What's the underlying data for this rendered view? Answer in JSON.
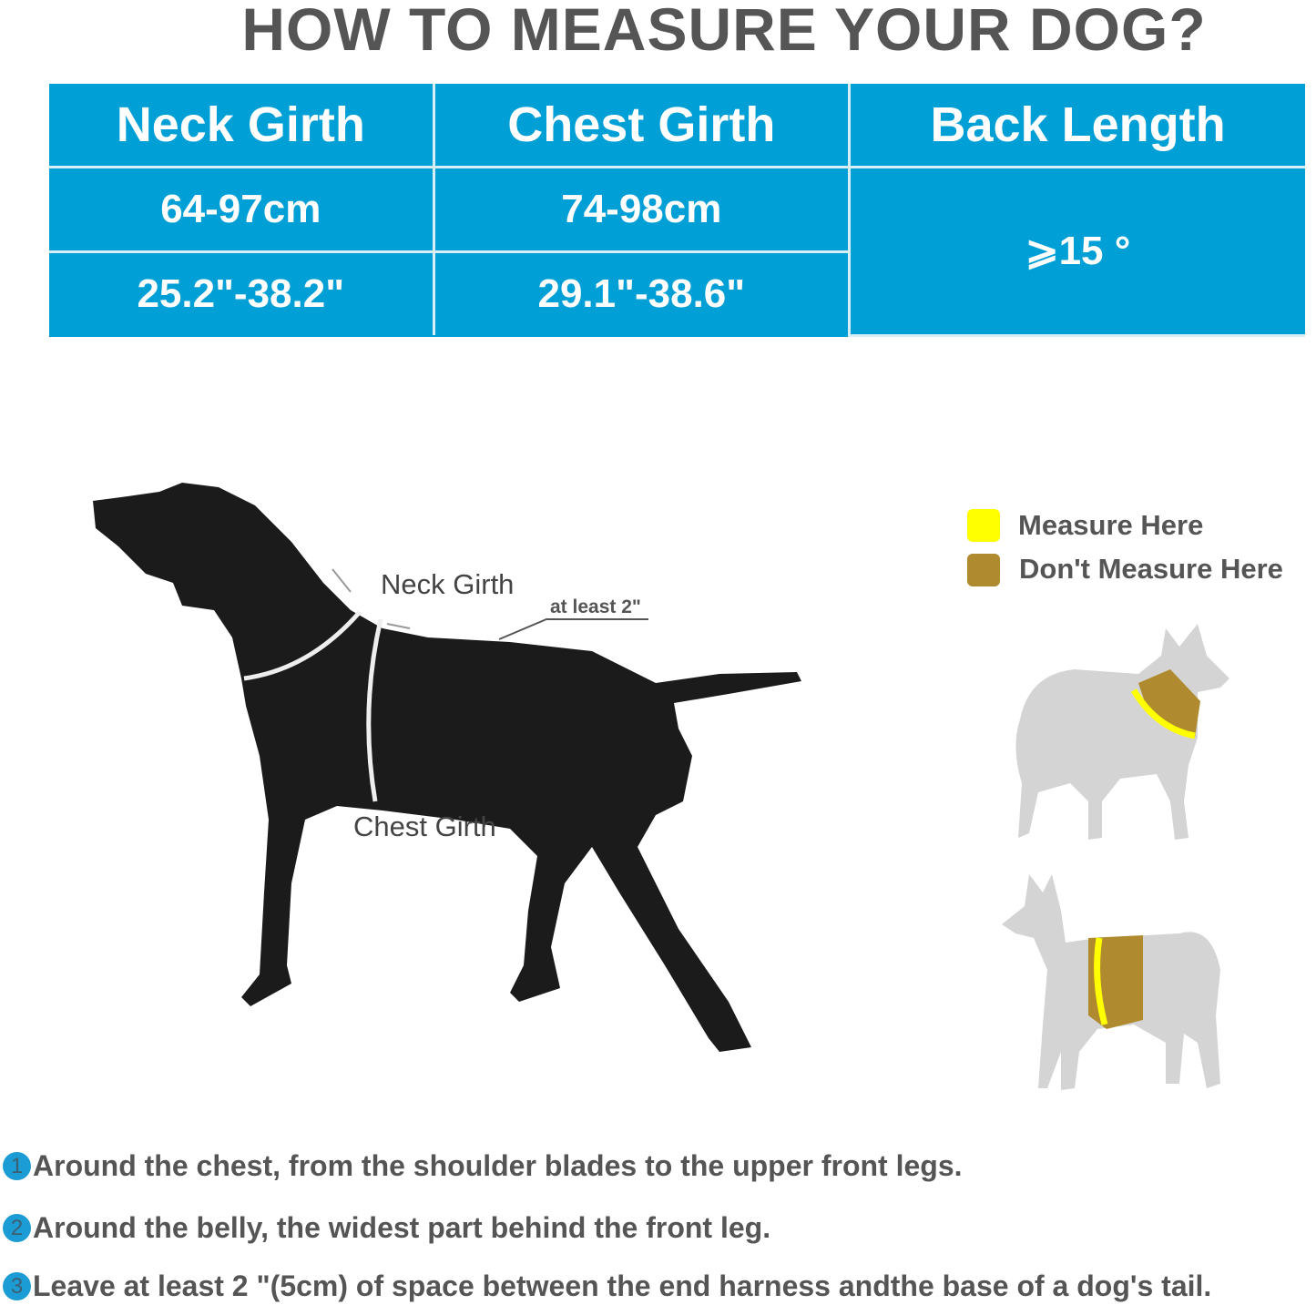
{
  "title": "HOW TO MEASURE YOUR DOG?",
  "colors": {
    "table_bg": "#009fd6",
    "measure_here": "#ffff00",
    "dont_measure_here": "#b08a2e",
    "text": "#555555"
  },
  "table": {
    "headers": [
      "Neck Girth",
      "Chest Girth",
      "Back Length"
    ],
    "rows": [
      {
        "neck": "64-97cm",
        "chest": "74-98cm"
      },
      {
        "neck": "25.2\"-38.2\"",
        "chest": "29.1\"-38.6\""
      }
    ],
    "back_length": "⩾15 °"
  },
  "diagram": {
    "neck_label": "Neck Girth",
    "chest_label": "Chest Girth",
    "space_label": "at least 2\""
  },
  "legend": {
    "items": [
      {
        "label": "Measure Here",
        "color": "#ffff00"
      },
      {
        "label": "Don't Measure Here",
        "color": "#b08a2e"
      }
    ]
  },
  "steps": [
    {
      "num": "1",
      "text": "Around the chest, from the shoulder blades to the upper front legs."
    },
    {
      "num": "2",
      "text": "Around the belly, the widest part behind the front leg."
    },
    {
      "num": "3",
      "text": "Leave at least 2 \"(5cm) of space between the end harness andthe base of a dog's tail."
    }
  ]
}
